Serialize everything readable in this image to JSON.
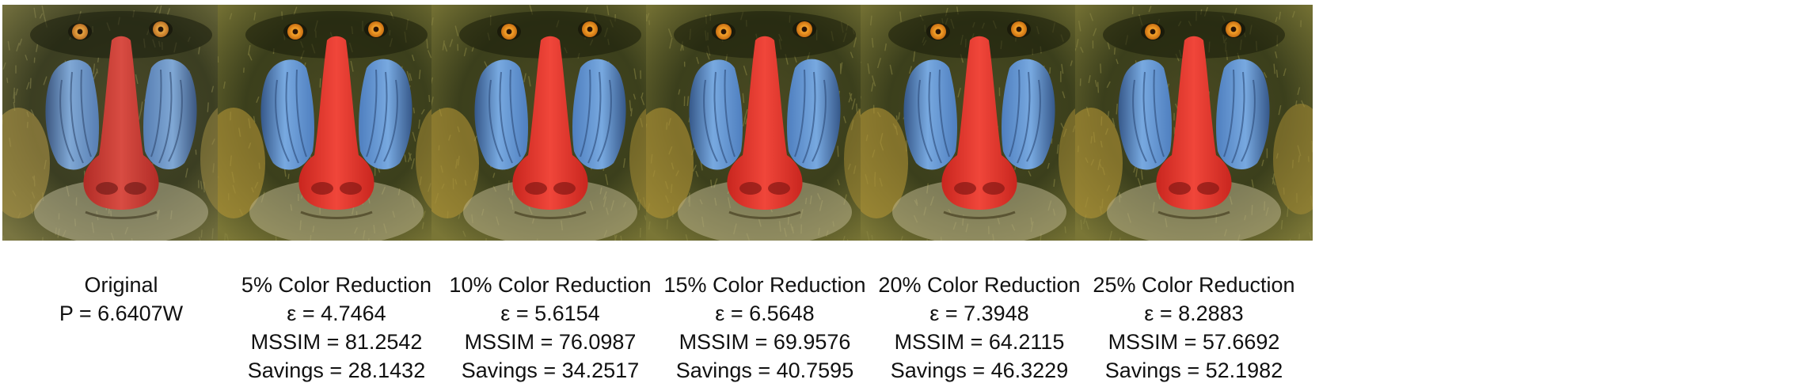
{
  "panels": [
    {
      "title": "Original",
      "lines": [
        "P = 6.6407W"
      ],
      "saturation": 0.82
    },
    {
      "title": "5% Color Reduction",
      "lines": [
        "ε = 4.7464",
        "MSSIM = 81.2542",
        "Savings = 28.1432"
      ],
      "saturation": 1.0
    },
    {
      "title": "10% Color Reduction",
      "lines": [
        "ε = 5.6154",
        "MSSIM = 76.0987",
        "Savings = 34.2517"
      ],
      "saturation": 1.0
    },
    {
      "title": "15% Color Reduction",
      "lines": [
        "ε = 6.5648",
        "MSSIM = 69.9576",
        "Savings = 40.7595"
      ],
      "saturation": 1.0
    },
    {
      "title": "20% Color Reduction",
      "lines": [
        "ε = 7.3948",
        "MSSIM = 64.2115",
        "Savings = 46.3229"
      ],
      "saturation": 1.0
    },
    {
      "title": "25% Color Reduction",
      "lines": [
        "ε = 8.2883",
        "MSSIM = 57.6692",
        "Savings = 52.1982"
      ],
      "saturation": 1.0
    }
  ],
  "colors": {
    "fur_dark": "#2c3216",
    "fur_mid": "#6b6a2e",
    "fur_light": "#a7a55a",
    "fur_yellow": "#c2a23c",
    "cheek_blue": "#6f9fd6",
    "cheek_blue_dark": "#36588a",
    "nose_red": "#e8342c",
    "nose_red_dark": "#a4201c",
    "eye_orange": "#e7901d",
    "beard": "#c8c2a0"
  }
}
